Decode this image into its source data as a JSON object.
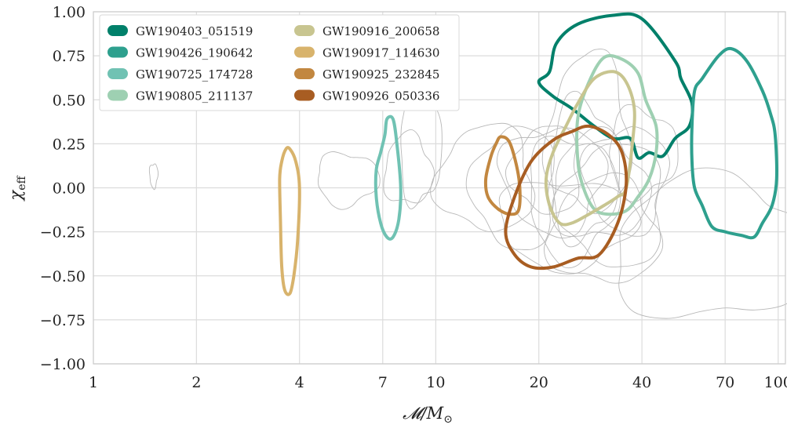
{
  "chart_data": {
    "type": "contour",
    "xlabel": "𝓜/M",
    "xlabel_sub": "⊙",
    "ylabel": "χ",
    "ylabel_sub": "eff",
    "x_scale": "log",
    "xlim": [
      1,
      105
    ],
    "ylim": [
      -1.0,
      1.0
    ],
    "grid": true,
    "legend_position": "top-left",
    "x_ticks": [
      {
        "value": 1,
        "label": "1"
      },
      {
        "value": 2,
        "label": "2"
      },
      {
        "value": 4,
        "label": "4"
      },
      {
        "value": 7,
        "label": "7"
      },
      {
        "value": 10,
        "label": "10"
      },
      {
        "value": 20,
        "label": "20"
      },
      {
        "value": 40,
        "label": "40"
      },
      {
        "value": 70,
        "label": "70"
      },
      {
        "value": 100,
        "label": "100"
      }
    ],
    "y_ticks": [
      {
        "value": 1.0,
        "label": "1.00"
      },
      {
        "value": 0.75,
        "label": "0.75"
      },
      {
        "value": 0.5,
        "label": "0.50"
      },
      {
        "value": 0.25,
        "label": "0.25"
      },
      {
        "value": 0.0,
        "label": "0.00"
      },
      {
        "value": -0.25,
        "label": "−0.25"
      },
      {
        "value": -0.5,
        "label": "−0.50"
      },
      {
        "value": -0.75,
        "label": "−0.75"
      },
      {
        "value": -1.0,
        "label": "−1.00"
      }
    ],
    "background_contours": [
      {
        "cx": 1.5,
        "cy": 0.07,
        "rx": 0.012,
        "ry": 0.07
      },
      {
        "cx": 5.5,
        "cy": 0.05,
        "rx": 0.09,
        "ry": 0.15
      },
      {
        "cx": 9.0,
        "cy": 0.25,
        "rx": 0.06,
        "ry": 0.35
      },
      {
        "cx": 8.3,
        "cy": 0.1,
        "rx": 0.07,
        "ry": 0.2
      },
      {
        "cx": 14.0,
        "cy": 0.05,
        "rx": 0.14,
        "ry": 0.3
      },
      {
        "cx": 17.0,
        "cy": 0.0,
        "rx": 0.12,
        "ry": 0.35
      },
      {
        "cx": 22.0,
        "cy": 0.05,
        "rx": 0.15,
        "ry": 0.3
      },
      {
        "cx": 25.0,
        "cy": -0.05,
        "rx": 0.13,
        "ry": 0.35
      },
      {
        "cx": 27.0,
        "cy": 0.1,
        "rx": 0.1,
        "ry": 0.4
      },
      {
        "cx": 30.0,
        "cy": 0.0,
        "rx": 0.14,
        "ry": 0.3
      },
      {
        "cx": 28.0,
        "cy": 0.3,
        "rx": 0.12,
        "ry": 0.45
      },
      {
        "cx": 33.0,
        "cy": -0.1,
        "rx": 0.15,
        "ry": 0.35
      },
      {
        "cx": 36.0,
        "cy": 0.05,
        "rx": 0.12,
        "ry": 0.3
      },
      {
        "cx": 24.0,
        "cy": -0.2,
        "rx": 0.2,
        "ry": 0.25
      },
      {
        "cx": 40.0,
        "cy": 0.2,
        "rx": 0.1,
        "ry": 0.25
      },
      {
        "cx": 65.0,
        "cy": -0.35,
        "rx": 0.3,
        "ry": 0.4
      },
      {
        "cx": 31.0,
        "cy": -0.25,
        "rx": 0.16,
        "ry": 0.3
      },
      {
        "cx": 21.0,
        "cy": 0.1,
        "rx": 0.1,
        "ry": 0.25
      }
    ],
    "series": [
      {
        "name": "GW190403_051519",
        "color": "#00806a",
        "points": [
          [
            21.5,
            0.66
          ],
          [
            22.5,
            0.82
          ],
          [
            26,
            0.93
          ],
          [
            33,
            0.98
          ],
          [
            40,
            0.96
          ],
          [
            50,
            0.72
          ],
          [
            52,
            0.62
          ],
          [
            56,
            0.48
          ],
          [
            55,
            0.35
          ],
          [
            50,
            0.28
          ],
          [
            46,
            0.18
          ],
          [
            42,
            0.2
          ],
          [
            39,
            0.17
          ],
          [
            37,
            0.28
          ],
          [
            33,
            0.28
          ],
          [
            29,
            0.35
          ],
          [
            25,
            0.45
          ],
          [
            22,
            0.52
          ],
          [
            20,
            0.6
          ]
        ]
      },
      {
        "name": "GW190426_190642",
        "color": "#2ea08e",
        "points": [
          [
            57,
            0.55
          ],
          [
            60,
            0.62
          ],
          [
            67,
            0.75
          ],
          [
            73,
            0.79
          ],
          [
            81,
            0.72
          ],
          [
            90,
            0.55
          ],
          [
            95,
            0.42
          ],
          [
            98,
            0.3
          ],
          [
            99,
            0.05
          ],
          [
            96,
            -0.1
          ],
          [
            90,
            -0.2
          ],
          [
            85,
            -0.28
          ],
          [
            78,
            -0.27
          ],
          [
            70,
            -0.25
          ],
          [
            64,
            -0.22
          ],
          [
            60,
            -0.1
          ],
          [
            57,
            0.0
          ],
          [
            56,
            0.15
          ],
          [
            56,
            0.35
          ]
        ]
      },
      {
        "name": "GW190725_174728",
        "color": "#70c2b3",
        "points": [
          [
            7.2,
            0.39
          ],
          [
            7.5,
            0.39
          ],
          [
            7.7,
            0.25
          ],
          [
            7.9,
            0.0
          ],
          [
            7.8,
            -0.18
          ],
          [
            7.5,
            -0.28
          ],
          [
            7.2,
            -0.28
          ],
          [
            6.9,
            -0.2
          ],
          [
            6.7,
            -0.05
          ],
          [
            6.7,
            0.1
          ],
          [
            6.9,
            0.2
          ],
          [
            7.1,
            0.3
          ]
        ]
      },
      {
        "name": "GW190805_211137",
        "color": "#9ed0b2",
        "points": [
          [
            31,
            0.74
          ],
          [
            35,
            0.73
          ],
          [
            39,
            0.65
          ],
          [
            41,
            0.5
          ],
          [
            44,
            0.35
          ],
          [
            44,
            0.2
          ],
          [
            42,
            0.05
          ],
          [
            39,
            -0.05
          ],
          [
            36,
            -0.13
          ],
          [
            32,
            -0.15
          ],
          [
            29,
            -0.12
          ],
          [
            27,
            0.0
          ],
          [
            26,
            0.15
          ],
          [
            26,
            0.4
          ],
          [
            28,
            0.6
          ]
        ]
      },
      {
        "name": "GW190916_200658",
        "color": "#c8c590",
        "points": [
          [
            29,
            0.62
          ],
          [
            33,
            0.66
          ],
          [
            36,
            0.6
          ],
          [
            38,
            0.45
          ],
          [
            37.5,
            0.25
          ],
          [
            36,
            0.0
          ],
          [
            34,
            -0.05
          ],
          [
            31,
            -0.1
          ],
          [
            28,
            -0.15
          ],
          [
            25,
            -0.2
          ],
          [
            23,
            -0.2
          ],
          [
            21.5,
            -0.1
          ],
          [
            21,
            0.05
          ],
          [
            22,
            0.2
          ],
          [
            24,
            0.35
          ],
          [
            26,
            0.48
          ]
        ]
      },
      {
        "name": "GW190917_114630",
        "color": "#d8b36c",
        "points": [
          [
            3.65,
            0.22
          ],
          [
            3.75,
            0.22
          ],
          [
            3.9,
            0.15
          ],
          [
            4.0,
            0.0
          ],
          [
            3.95,
            -0.3
          ],
          [
            3.85,
            -0.5
          ],
          [
            3.75,
            -0.6
          ],
          [
            3.62,
            -0.58
          ],
          [
            3.55,
            -0.45
          ],
          [
            3.52,
            -0.2
          ],
          [
            3.5,
            0.05
          ],
          [
            3.55,
            0.15
          ]
        ]
      },
      {
        "name": "GW190925_232845",
        "color": "#c28740",
        "points": [
          [
            15.5,
            0.29
          ],
          [
            16.5,
            0.25
          ],
          [
            17.5,
            0.05
          ],
          [
            17.5,
            -0.12
          ],
          [
            16.5,
            -0.15
          ],
          [
            15.2,
            -0.12
          ],
          [
            14.2,
            -0.05
          ],
          [
            14.0,
            0.05
          ],
          [
            14.5,
            0.18
          ],
          [
            15.0,
            0.25
          ]
        ]
      },
      {
        "name": "GW190926_050336",
        "color": "#a85d22",
        "points": [
          [
            25,
            0.32
          ],
          [
            28,
            0.35
          ],
          [
            32,
            0.3
          ],
          [
            35,
            0.2
          ],
          [
            36,
            0.02
          ],
          [
            34,
            -0.2
          ],
          [
            30,
            -0.38
          ],
          [
            26,
            -0.4
          ],
          [
            22,
            -0.45
          ],
          [
            19,
            -0.45
          ],
          [
            17,
            -0.38
          ],
          [
            16,
            -0.25
          ],
          [
            17,
            -0.05
          ],
          [
            19,
            0.15
          ],
          [
            22,
            0.27
          ]
        ]
      }
    ]
  }
}
